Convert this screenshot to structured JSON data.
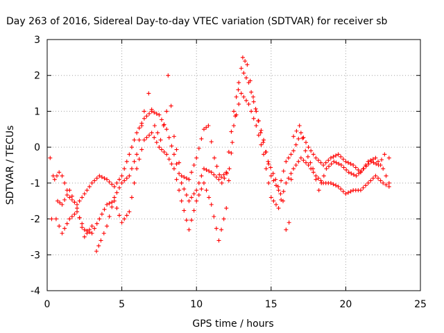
{
  "chart_data": {
    "type": "scatter",
    "title": "Day 263 of 2016, Sidereal Day-to-day VTEC variation (SDTVAR) for receiver sb",
    "xlabel": "GPS time / hours",
    "ylabel": "SDTVAR / TECUs",
    "xlim": [
      0,
      25
    ],
    "ylim": [
      -4,
      3
    ],
    "xticks": [
      "0",
      "5",
      "10",
      "15",
      "20",
      "25"
    ],
    "yticks": [
      "-4",
      "-3",
      "-2",
      "-1",
      "0",
      "1",
      "2",
      "3"
    ],
    "grid": true,
    "marker": "plus",
    "color": "#ff0000",
    "series": [
      {
        "values": [
          [
            0.2,
            -0.3
          ],
          [
            0.5,
            -0.9
          ],
          [
            0.8,
            -0.7
          ],
          [
            1.0,
            -0.8
          ],
          [
            1.5,
            -1.4
          ],
          [
            2.0,
            -1.6
          ],
          [
            2.5,
            -1.3
          ],
          [
            3.0,
            -1.0
          ],
          [
            3.5,
            -0.8
          ],
          [
            4.0,
            -0.9
          ],
          [
            4.5,
            -1.1
          ],
          [
            5.0,
            -0.8
          ],
          [
            5.5,
            -0.2
          ],
          [
            6.0,
            0.4
          ],
          [
            6.5,
            0.8
          ],
          [
            7.0,
            1.0
          ],
          [
            7.5,
            0.9
          ],
          [
            8.0,
            0.5
          ],
          [
            8.5,
            -0.2
          ],
          [
            9.0,
            -1.0
          ],
          [
            9.5,
            -1.5
          ],
          [
            10.0,
            -1.2
          ],
          [
            10.5,
            -0.6
          ],
          [
            11.0,
            -0.7
          ],
          [
            11.5,
            -0.9
          ],
          [
            12.0,
            -0.7
          ],
          [
            12.5,
            1.0
          ],
          [
            13.0,
            2.2
          ],
          [
            13.5,
            1.8
          ],
          [
            14.0,
            1.0
          ],
          [
            14.5,
            0.2
          ],
          [
            15.0,
            -0.8
          ],
          [
            15.5,
            -1.2
          ],
          [
            16.0,
            -0.4
          ],
          [
            16.5,
            -0.1
          ],
          [
            17.0,
            0.4
          ],
          [
            17.5,
            0.0
          ],
          [
            18.0,
            -0.3
          ],
          [
            18.5,
            -0.5
          ],
          [
            19.0,
            -0.3
          ],
          [
            19.5,
            -0.2
          ],
          [
            20.0,
            -0.4
          ],
          [
            20.5,
            -0.5
          ],
          [
            21.0,
            -0.7
          ],
          [
            21.5,
            -0.4
          ],
          [
            22.0,
            -0.3
          ],
          [
            22.5,
            -0.6
          ],
          [
            22.9,
            -1.0
          ]
        ]
      },
      {
        "values": [
          [
            0.3,
            -2.0
          ],
          [
            0.6,
            -2.0
          ],
          [
            1.0,
            -2.4
          ],
          [
            1.5,
            -2.0
          ],
          [
            2.0,
            -1.8
          ],
          [
            2.5,
            -2.3
          ],
          [
            3.0,
            -2.4
          ],
          [
            3.5,
            -2.0
          ],
          [
            4.0,
            -1.6
          ],
          [
            4.5,
            -1.5
          ],
          [
            5.0,
            -2.1
          ],
          [
            5.5,
            -1.8
          ],
          [
            6.0,
            -0.6
          ],
          [
            6.5,
            0.2
          ],
          [
            7.0,
            0.4
          ],
          [
            7.5,
            0.0
          ],
          [
            8.0,
            -0.2
          ],
          [
            8.5,
            -0.6
          ],
          [
            9.0,
            -1.5
          ],
          [
            9.5,
            -2.3
          ],
          [
            10.0,
            -1.5
          ],
          [
            10.5,
            -1.0
          ],
          [
            11.0,
            -1.6
          ],
          [
            11.5,
            -2.6
          ],
          [
            12.0,
            -1.7
          ],
          [
            12.5,
            0.6
          ],
          [
            13.0,
            1.5
          ],
          [
            13.5,
            1.2
          ],
          [
            14.0,
            0.6
          ],
          [
            14.5,
            -0.2
          ],
          [
            15.0,
            -1.4
          ],
          [
            15.5,
            -1.7
          ],
          [
            16.0,
            -1.0
          ],
          [
            16.5,
            -0.6
          ],
          [
            17.0,
            -0.3
          ],
          [
            17.5,
            -0.5
          ],
          [
            18.0,
            -0.8
          ],
          [
            18.5,
            -1.0
          ],
          [
            19.0,
            -1.0
          ],
          [
            19.5,
            -1.1
          ],
          [
            20.0,
            -1.3
          ],
          [
            20.5,
            -1.2
          ],
          [
            21.0,
            -1.2
          ],
          [
            21.5,
            -1.0
          ],
          [
            22.0,
            -0.8
          ],
          [
            22.5,
            -1.0
          ],
          [
            22.9,
            -1.1
          ]
        ]
      },
      {
        "values": [
          [
            0.4,
            -0.8
          ],
          [
            0.7,
            -1.5
          ],
          [
            1.0,
            -1.6
          ],
          [
            1.5,
            -1.2
          ],
          [
            2.0,
            -1.7
          ],
          [
            2.5,
            -2.5
          ],
          [
            3.0,
            -2.2
          ],
          [
            3.3,
            -2.9
          ],
          [
            3.6,
            -2.6
          ],
          [
            4.0,
            -2.2
          ],
          [
            4.5,
            -1.4
          ],
          [
            5.0,
            -1.0
          ],
          [
            5.5,
            -0.8
          ],
          [
            6.0,
            -0.2
          ],
          [
            6.5,
            1.0
          ],
          [
            6.8,
            1.5
          ],
          [
            7.2,
            0.6
          ],
          [
            7.6,
            0.2
          ],
          [
            8.0,
            1.0
          ],
          [
            8.1,
            2.0
          ],
          [
            8.5,
            0.3
          ],
          [
            9.0,
            -0.8
          ],
          [
            9.5,
            -0.9
          ],
          [
            10.0,
            -0.3
          ],
          [
            10.5,
            0.5
          ],
          [
            10.8,
            0.6
          ],
          [
            11.2,
            -0.3
          ],
          [
            11.7,
            -1.0
          ],
          [
            12.2,
            -0.6
          ],
          [
            12.8,
            1.6
          ],
          [
            13.1,
            2.5
          ],
          [
            13.4,
            2.3
          ],
          [
            13.8,
            1.4
          ],
          [
            14.3,
            0.4
          ],
          [
            14.8,
            -0.4
          ],
          [
            15.3,
            -0.9
          ],
          [
            15.8,
            -1.5
          ],
          [
            16.0,
            -2.3
          ],
          [
            16.2,
            -2.1
          ],
          [
            16.5,
            0.3
          ],
          [
            16.9,
            0.6
          ],
          [
            17.3,
            -0.1
          ],
          [
            17.8,
            -0.6
          ],
          [
            18.2,
            -1.2
          ],
          [
            18.7,
            -0.6
          ],
          [
            19.2,
            -0.4
          ],
          [
            19.7,
            -0.5
          ],
          [
            20.2,
            -0.7
          ],
          [
            20.7,
            -0.8
          ],
          [
            21.2,
            -0.6
          ],
          [
            21.7,
            -0.4
          ],
          [
            22.2,
            -0.5
          ],
          [
            22.6,
            -0.2
          ],
          [
            22.9,
            -0.3
          ]
        ]
      }
    ]
  }
}
